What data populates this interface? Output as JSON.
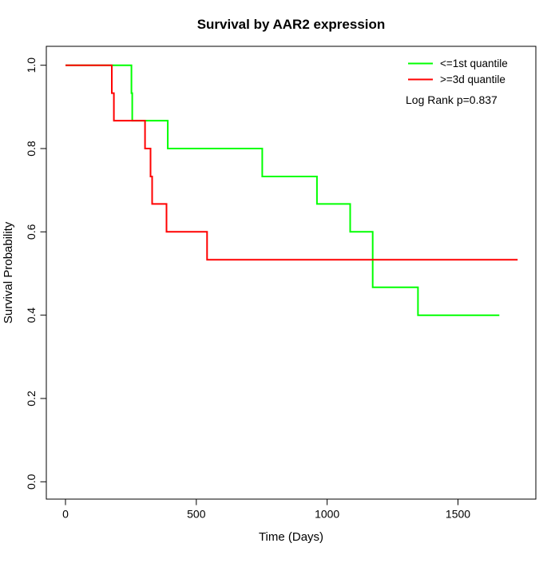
{
  "chart_data": {
    "type": "line",
    "subtype": "kaplan-meier-step",
    "title": "Survival by AAR2 expression",
    "xlabel": "Time (Days)",
    "ylabel": "Survival Probability",
    "xlim": [
      0,
      1795
    ],
    "ylim": [
      0.0,
      1.0
    ],
    "x_ticks": [
      "0",
      "500",
      "1000",
      "1500"
    ],
    "y_ticks": [
      "0.0",
      "0.2",
      "0.4",
      "0.6",
      "0.8",
      "1.0"
    ],
    "grid": false,
    "legend_position": "top-right",
    "annotation": "Log Rank p=0.837",
    "series": [
      {
        "name": "<=1st quantile",
        "color": "#00ff00",
        "points": [
          [
            0,
            1.0
          ],
          [
            252,
            1.0
          ],
          [
            252,
            0.933
          ],
          [
            255,
            0.933
          ],
          [
            255,
            0.867
          ],
          [
            391,
            0.867
          ],
          [
            391,
            0.8
          ],
          [
            752,
            0.8
          ],
          [
            752,
            0.733
          ],
          [
            961,
            0.733
          ],
          [
            961,
            0.667
          ],
          [
            1088,
            0.667
          ],
          [
            1088,
            0.6
          ],
          [
            1174,
            0.6
          ],
          [
            1174,
            0.467
          ],
          [
            1347,
            0.467
          ],
          [
            1347,
            0.4
          ],
          [
            1658,
            0.4
          ]
        ]
      },
      {
        "name": ">=3d quantile",
        "color": "#ff0000",
        "points": [
          [
            0,
            1.0
          ],
          [
            177,
            1.0
          ],
          [
            177,
            0.933
          ],
          [
            185,
            0.933
          ],
          [
            185,
            0.867
          ],
          [
            304,
            0.867
          ],
          [
            304,
            0.8
          ],
          [
            325,
            0.8
          ],
          [
            325,
            0.733
          ],
          [
            331,
            0.733
          ],
          [
            331,
            0.667
          ],
          [
            386,
            0.667
          ],
          [
            386,
            0.6
          ],
          [
            541,
            0.6
          ],
          [
            541,
            0.533
          ],
          [
            1728,
            0.533
          ]
        ]
      }
    ]
  }
}
